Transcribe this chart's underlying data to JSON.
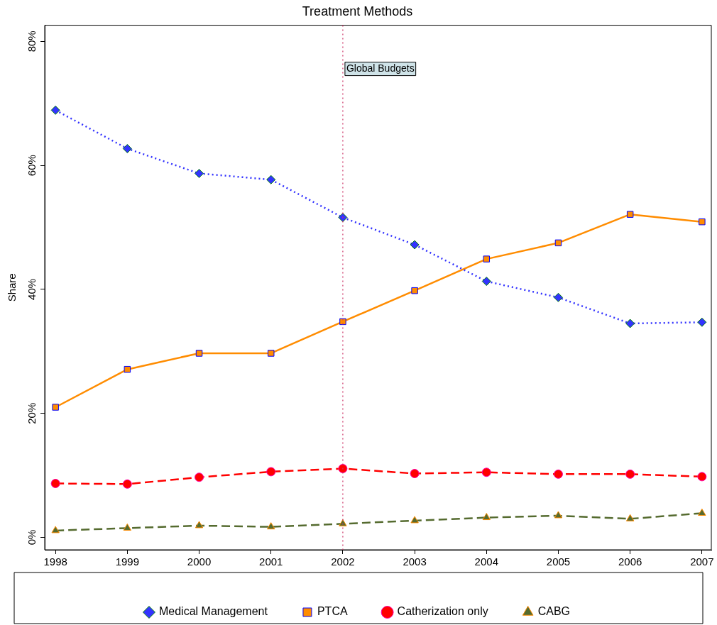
{
  "chart_data": {
    "type": "line",
    "title": "Treatment Methods",
    "ylabel": "Share",
    "x": [
      1998,
      1999,
      2000,
      2001,
      2002,
      2003,
      2004,
      2005,
      2006,
      2007
    ],
    "xlim": [
      1997.85,
      2007.13
    ],
    "xticks": [
      1998,
      1999,
      2000,
      2001,
      2002,
      2003,
      2004,
      2005,
      2006,
      2007
    ],
    "ylim": [
      -2,
      82.6
    ],
    "yticks": [
      {
        "value": 0,
        "label": "0%"
      },
      {
        "value": 20,
        "label": "20%"
      },
      {
        "value": 40,
        "label": "40%"
      },
      {
        "value": 60,
        "label": "60%"
      },
      {
        "value": 80,
        "label": "80%"
      }
    ],
    "grid": false,
    "legend": "bottom",
    "ref_lines": [
      {
        "axis": "x",
        "value": 2002,
        "label": "Global Budgets",
        "color": "#cc3366",
        "line_style": "dotted"
      }
    ],
    "series": [
      {
        "name": "Medical Management",
        "color": "#3333ff",
        "marker": "diamond",
        "line_style": "dotted",
        "values": [
          68.9,
          62.7,
          58.7,
          57.7,
          51.6,
          47.2,
          41.3,
          38.7,
          34.5,
          34.7
        ]
      },
      {
        "name": "PTCA",
        "color": "#ff8c00",
        "marker": "square",
        "line_style": "solid",
        "values": [
          21.0,
          27.1,
          29.7,
          29.7,
          34.8,
          39.8,
          44.9,
          47.5,
          52.1,
          50.9
        ]
      },
      {
        "name": "Catherization only",
        "color": "#ff0000",
        "marker": "circle",
        "line_style": "dashed",
        "values": [
          8.7,
          8.6,
          9.7,
          10.6,
          11.1,
          10.3,
          10.5,
          10.2,
          10.2,
          9.8
        ]
      },
      {
        "name": "CABG",
        "color": "#556b2f",
        "marker": "triangle",
        "line_style": "dashed",
        "values": [
          1.1,
          1.5,
          1.9,
          1.7,
          2.2,
          2.7,
          3.2,
          3.5,
          3.0,
          3.9
        ]
      }
    ]
  }
}
